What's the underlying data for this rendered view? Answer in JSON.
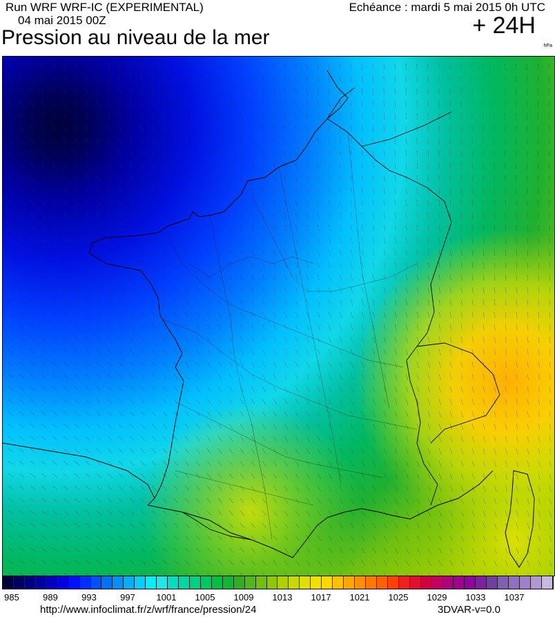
{
  "header": {
    "run_line": "Run WRF WRF-IC (EXPERIMENTAL)",
    "run_date": "04 mai 2015 00Z",
    "title": "Pression au niveau de la mer",
    "echeance": "Echéance : mardi 5 mai 2015 0h UTC",
    "forecast_step": "+ 24H",
    "unit": "hPa"
  },
  "map": {
    "variable": "mean sea level pressure",
    "region": "France",
    "overlays": [
      "country-borders",
      "department-borders",
      "coastlines",
      "wind-barbs"
    ],
    "low_pressure_center": "north-west (Atlantic, off Brittany)",
    "high_pressure_area": "south-east (Alps / Switzerland)"
  },
  "colorbar": {
    "labels": [
      "985",
      "989",
      "993",
      "997",
      "1001",
      "1005",
      "1009",
      "1013",
      "1017",
      "1021",
      "1025",
      "1029",
      "1033",
      "1037"
    ],
    "colors": [
      "#000040",
      "#000060",
      "#000080",
      "#0000a0",
      "#0000c0",
      "#0000e0",
      "#0010ff",
      "#0030ff",
      "#0050ff",
      "#0070ff",
      "#0090ff",
      "#00b0ff",
      "#00d0ff",
      "#00f0ff",
      "#20e8e8",
      "#00e0c0",
      "#00d8a0",
      "#00d080",
      "#00c860",
      "#00c040",
      "#10b830",
      "#30b020",
      "#50b818",
      "#70c010",
      "#90c800",
      "#b0d000",
      "#c8d800",
      "#e0e000",
      "#f0e000",
      "#ffd800",
      "#ffc000",
      "#ffa800",
      "#ff9000",
      "#ff7800",
      "#ff6000",
      "#ff4000",
      "#f02020",
      "#e01030",
      "#d00040",
      "#c00060",
      "#b00080",
      "#a00090",
      "#9000a0",
      "#8020a0",
      "#7040a0",
      "#8060b0",
      "#9070c0",
      "#a080c8",
      "#b098d0",
      "#c8b8e0"
    ]
  },
  "footer": {
    "source": "http://www.infoclimat.fr/z/wrf/france/pression/24",
    "version": "3DVAR-v=0.0"
  }
}
